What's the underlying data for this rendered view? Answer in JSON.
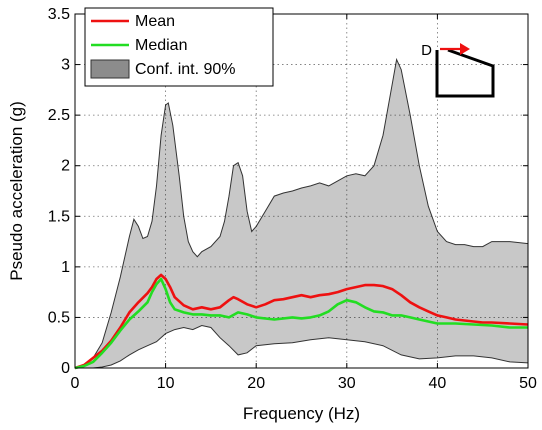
{
  "chart_data": {
    "type": "area",
    "xlabel": "Frequency (Hz)",
    "ylabel": "Pseudo acceleration (g)",
    "xlim": [
      0,
      50
    ],
    "ylim": [
      0,
      3.5
    ],
    "x_ticks": [
      0,
      10,
      20,
      30,
      40,
      50
    ],
    "y_ticks": [
      0,
      0.5,
      1,
      1.5,
      2,
      2.5,
      3,
      3.5
    ],
    "x_tick_labels": [
      "0",
      "10",
      "20",
      "30",
      "40",
      "50"
    ],
    "y_tick_labels": [
      "0",
      "0.5",
      "1",
      "1.5",
      "2",
      "2.5",
      "3",
      "3.5"
    ],
    "grid": true,
    "legend_position": "top-left",
    "legend": [
      {
        "label": "Mean",
        "kind": "line",
        "color": "#ee1111"
      },
      {
        "label": "Median",
        "kind": "line",
        "color": "#22dd22"
      },
      {
        "label": "Conf. int. 90%",
        "kind": "patch",
        "color": "#8c8c8c"
      }
    ],
    "band": {
      "name": "Conf. int. 90%",
      "fill": "#c8c8c8",
      "edge": "#333333",
      "upper": [
        [
          0,
          0
        ],
        [
          1,
          0.03
        ],
        [
          2,
          0.1
        ],
        [
          3,
          0.25
        ],
        [
          4,
          0.55
        ],
        [
          5,
          0.9
        ],
        [
          6,
          1.3
        ],
        [
          6.5,
          1.47
        ],
        [
          7,
          1.4
        ],
        [
          7.5,
          1.28
        ],
        [
          8,
          1.3
        ],
        [
          8.5,
          1.45
        ],
        [
          9,
          1.8
        ],
        [
          9.5,
          2.3
        ],
        [
          10,
          2.6
        ],
        [
          10.3,
          2.62
        ],
        [
          10.8,
          2.4
        ],
        [
          11.5,
          1.9
        ],
        [
          12,
          1.5
        ],
        [
          12.5,
          1.25
        ],
        [
          13,
          1.15
        ],
        [
          13.5,
          1.1
        ],
        [
          14,
          1.15
        ],
        [
          15,
          1.2
        ],
        [
          16,
          1.3
        ],
        [
          16.5,
          1.45
        ],
        [
          17,
          1.7
        ],
        [
          17.5,
          2.0
        ],
        [
          18,
          2.03
        ],
        [
          18.5,
          1.9
        ],
        [
          19,
          1.55
        ],
        [
          19.5,
          1.35
        ],
        [
          20,
          1.4
        ],
        [
          21,
          1.55
        ],
        [
          22,
          1.7
        ],
        [
          23,
          1.73
        ],
        [
          24,
          1.75
        ],
        [
          25,
          1.78
        ],
        [
          26,
          1.8
        ],
        [
          27,
          1.83
        ],
        [
          28,
          1.8
        ],
        [
          29,
          1.85
        ],
        [
          30,
          1.9
        ],
        [
          31,
          1.92
        ],
        [
          32,
          1.9
        ],
        [
          33,
          2.0
        ],
        [
          34,
          2.3
        ],
        [
          35,
          2.8
        ],
        [
          35.5,
          3.05
        ],
        [
          36,
          2.95
        ],
        [
          37,
          2.5
        ],
        [
          38,
          2.0
        ],
        [
          39,
          1.6
        ],
        [
          40,
          1.35
        ],
        [
          41,
          1.25
        ],
        [
          42,
          1.22
        ],
        [
          43,
          1.22
        ],
        [
          44,
          1.2
        ],
        [
          45,
          1.2
        ],
        [
          46,
          1.25
        ],
        [
          48,
          1.25
        ],
        [
          50,
          1.23
        ]
      ],
      "lower": [
        [
          0,
          0
        ],
        [
          2,
          0
        ],
        [
          3,
          0.01
        ],
        [
          4,
          0.03
        ],
        [
          5,
          0.07
        ],
        [
          6,
          0.13
        ],
        [
          7,
          0.18
        ],
        [
          8,
          0.22
        ],
        [
          9,
          0.26
        ],
        [
          10,
          0.34
        ],
        [
          11,
          0.38
        ],
        [
          12,
          0.4
        ],
        [
          13,
          0.38
        ],
        [
          14,
          0.42
        ],
        [
          15,
          0.4
        ],
        [
          16,
          0.3
        ],
        [
          17,
          0.22
        ],
        [
          18,
          0.13
        ],
        [
          19,
          0.15
        ],
        [
          20,
          0.22
        ],
        [
          22,
          0.24
        ],
        [
          24,
          0.25
        ],
        [
          26,
          0.28
        ],
        [
          28,
          0.3
        ],
        [
          30,
          0.28
        ],
        [
          32,
          0.26
        ],
        [
          34,
          0.22
        ],
        [
          36,
          0.13
        ],
        [
          38,
          0.09
        ],
        [
          40,
          0.1
        ],
        [
          42,
          0.12
        ],
        [
          44,
          0.12
        ],
        [
          46,
          0.1
        ],
        [
          48,
          0.06
        ],
        [
          50,
          0.05
        ]
      ]
    },
    "series": [
      {
        "name": "Mean",
        "color": "#ee1111",
        "points": [
          [
            0,
            0
          ],
          [
            1,
            0.03
          ],
          [
            2,
            0.1
          ],
          [
            3,
            0.17
          ],
          [
            4,
            0.27
          ],
          [
            5,
            0.4
          ],
          [
            6,
            0.55
          ],
          [
            7,
            0.65
          ],
          [
            8,
            0.74
          ],
          [
            8.5,
            0.8
          ],
          [
            9,
            0.88
          ],
          [
            9.5,
            0.92
          ],
          [
            10,
            0.88
          ],
          [
            10.5,
            0.8
          ],
          [
            11,
            0.7
          ],
          [
            12,
            0.62
          ],
          [
            13,
            0.58
          ],
          [
            14,
            0.6
          ],
          [
            15,
            0.58
          ],
          [
            16,
            0.6
          ],
          [
            17,
            0.67
          ],
          [
            17.5,
            0.7
          ],
          [
            18,
            0.68
          ],
          [
            19,
            0.63
          ],
          [
            20,
            0.6
          ],
          [
            21,
            0.63
          ],
          [
            22,
            0.67
          ],
          [
            23,
            0.68
          ],
          [
            24,
            0.7
          ],
          [
            25,
            0.72
          ],
          [
            26,
            0.7
          ],
          [
            27,
            0.72
          ],
          [
            28,
            0.73
          ],
          [
            29,
            0.75
          ],
          [
            30,
            0.78
          ],
          [
            31,
            0.8
          ],
          [
            32,
            0.82
          ],
          [
            33,
            0.82
          ],
          [
            34,
            0.81
          ],
          [
            35,
            0.78
          ],
          [
            36,
            0.72
          ],
          [
            37,
            0.65
          ],
          [
            38,
            0.6
          ],
          [
            39,
            0.56
          ],
          [
            40,
            0.52
          ],
          [
            41,
            0.5
          ],
          [
            42,
            0.48
          ],
          [
            43,
            0.47
          ],
          [
            44,
            0.46
          ],
          [
            45,
            0.45
          ],
          [
            46,
            0.45
          ],
          [
            48,
            0.44
          ],
          [
            50,
            0.43
          ]
        ]
      },
      {
        "name": "Median",
        "color": "#22dd22",
        "points": [
          [
            0,
            0
          ],
          [
            1,
            0.02
          ],
          [
            2,
            0.06
          ],
          [
            3,
            0.15
          ],
          [
            4,
            0.25
          ],
          [
            5,
            0.37
          ],
          [
            6,
            0.48
          ],
          [
            7,
            0.56
          ],
          [
            8,
            0.65
          ],
          [
            8.5,
            0.75
          ],
          [
            9,
            0.83
          ],
          [
            9.5,
            0.88
          ],
          [
            10,
            0.78
          ],
          [
            10.5,
            0.65
          ],
          [
            11,
            0.58
          ],
          [
            12,
            0.55
          ],
          [
            13,
            0.53
          ],
          [
            14,
            0.53
          ],
          [
            15,
            0.52
          ],
          [
            16,
            0.52
          ],
          [
            17,
            0.5
          ],
          [
            18,
            0.55
          ],
          [
            19,
            0.53
          ],
          [
            20,
            0.5
          ],
          [
            22,
            0.48
          ],
          [
            24,
            0.5
          ],
          [
            25,
            0.49
          ],
          [
            26,
            0.5
          ],
          [
            27,
            0.52
          ],
          [
            28,
            0.56
          ],
          [
            29,
            0.63
          ],
          [
            30,
            0.67
          ],
          [
            31,
            0.65
          ],
          [
            32,
            0.6
          ],
          [
            33,
            0.56
          ],
          [
            34,
            0.55
          ],
          [
            35,
            0.52
          ],
          [
            36,
            0.52
          ],
          [
            37,
            0.5
          ],
          [
            38,
            0.48
          ],
          [
            39,
            0.46
          ],
          [
            40,
            0.44
          ],
          [
            42,
            0.44
          ],
          [
            44,
            0.43
          ],
          [
            46,
            0.42
          ],
          [
            48,
            0.4
          ],
          [
            50,
            0.4
          ]
        ]
      }
    ]
  },
  "annotation": {
    "label": "D",
    "arrow_color": "#ee1111"
  }
}
